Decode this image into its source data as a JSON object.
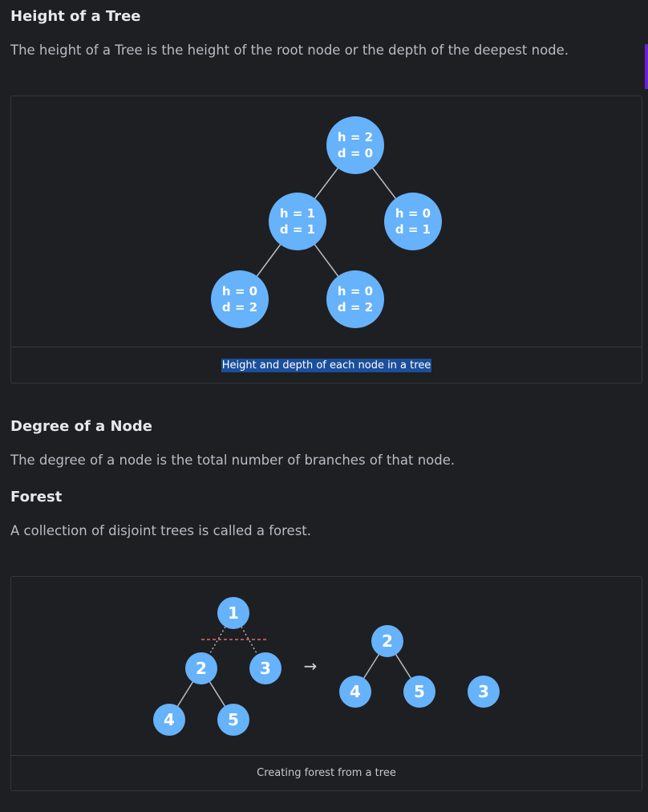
{
  "sections": {
    "height": {
      "title": "Height of a Tree",
      "text": "The height of a Tree is the height of the root node or the depth of the deepest node."
    },
    "degree": {
      "title": "Degree of a Node",
      "text": "The degree of a node is the total number of branches of that node."
    },
    "forest": {
      "title": "Forest",
      "text": "A collection of disjoint trees is called a forest."
    }
  },
  "figure1": {
    "caption": "Height and depth of each node in a tree",
    "nodes": [
      {
        "h": "h = 2",
        "d": "d = 0"
      },
      {
        "h": "h = 1",
        "d": "d = 1"
      },
      {
        "h": "h = 0",
        "d": "d = 1"
      },
      {
        "h": "h = 0",
        "d": "d = 2"
      },
      {
        "h": "h = 0",
        "d": "d = 2"
      }
    ]
  },
  "figure2": {
    "caption": "Creating forest from a tree",
    "tree_nodes": [
      "1",
      "2",
      "3",
      "4",
      "5"
    ],
    "forest_nodes": [
      "2",
      "4",
      "5",
      "3"
    ],
    "arrow": "→"
  },
  "colors": {
    "node_fill": "#66b2fb",
    "edge": "#b8bcc4",
    "cut_line": "#e06b6b",
    "background": "#1e1f22"
  }
}
